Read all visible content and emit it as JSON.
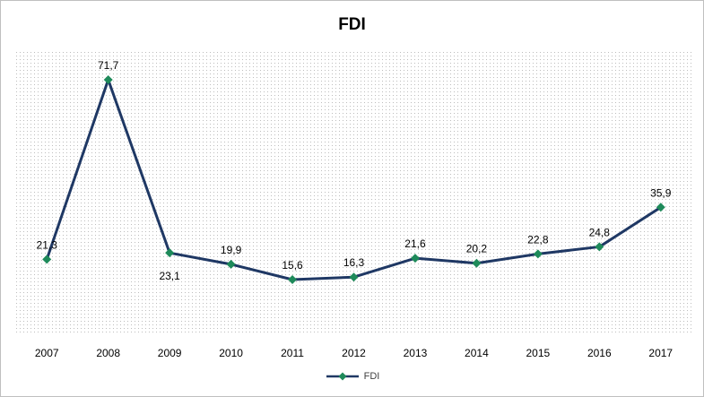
{
  "chart_data": {
    "type": "line",
    "title": "FDI",
    "xlabel": "",
    "ylabel": "",
    "x": [
      "2007",
      "2008",
      "2009",
      "2010",
      "2011",
      "2012",
      "2013",
      "2014",
      "2015",
      "2016",
      "2017"
    ],
    "series": [
      {
        "name": "FDI",
        "values": [
          21.3,
          71.7,
          23.1,
          19.9,
          15.6,
          16.3,
          21.6,
          20.2,
          22.8,
          24.8,
          35.9
        ],
        "labels": [
          "21,3",
          "71,7",
          "23,1",
          "19,9",
          "15,6",
          "16,3",
          "21,6",
          "20,2",
          "22,8",
          "24,8",
          "35,9"
        ],
        "color": "#1f3864",
        "marker_color": "#1e8a5a"
      }
    ],
    "ylim": [
      5,
      80
    ],
    "grid": false,
    "legend": "bottom"
  }
}
